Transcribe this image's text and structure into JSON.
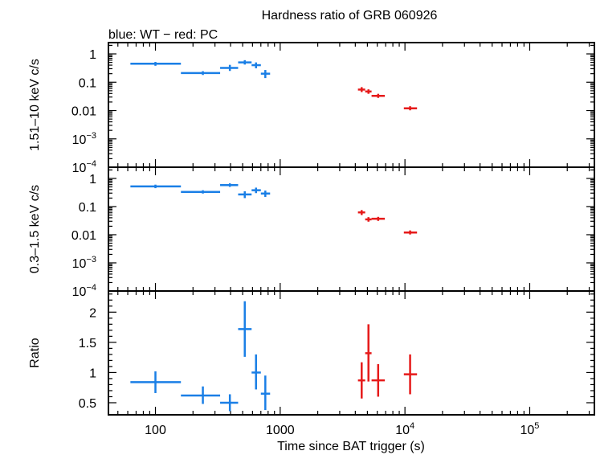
{
  "chart_data": {
    "type": "scatter",
    "title": "Hardness ratio of GRB 060926",
    "subtitle": "blue: WT − red: PC",
    "xlabel": "Time since BAT trigger (s)",
    "x_scale": "log",
    "xlim": [
      42,
      330000
    ],
    "x_ticks": [
      {
        "value": 100,
        "label": "100"
      },
      {
        "value": 1000,
        "label": "1000"
      },
      {
        "value": 10000,
        "label": "10",
        "exp": "4"
      },
      {
        "value": 100000,
        "label": "10",
        "exp": "5"
      }
    ],
    "colors": {
      "WT": "#1a7fe6",
      "PC": "#e61a1a"
    },
    "panels": [
      {
        "ylabel": "1.51–10 keV c/s",
        "y_scale": "log",
        "ylim": [
          0.0001,
          2.5
        ],
        "y_ticks": [
          {
            "value": 1,
            "label": "1"
          },
          {
            "value": 0.1,
            "label": "0.1"
          },
          {
            "value": 0.01,
            "label": "0.01"
          },
          {
            "value": 0.001,
            "label": "10",
            "exp": "−3"
          },
          {
            "value": 0.0001,
            "label": "10",
            "exp": "−4"
          }
        ],
        "series": [
          {
            "mode": "WT",
            "points": [
              {
                "x": 100,
                "xlo": 63,
                "xhi": 160,
                "y": 0.45,
                "ylo": 0.38,
                "yhi": 0.52
              },
              {
                "x": 240,
                "xlo": 160,
                "xhi": 330,
                "y": 0.21,
                "ylo": 0.18,
                "yhi": 0.245
              },
              {
                "x": 395,
                "xlo": 330,
                "xhi": 460,
                "y": 0.32,
                "ylo": 0.25,
                "yhi": 0.41
              },
              {
                "x": 520,
                "xlo": 460,
                "xhi": 590,
                "y": 0.5,
                "ylo": 0.42,
                "yhi": 0.6
              },
              {
                "x": 640,
                "xlo": 590,
                "xhi": 700,
                "y": 0.4,
                "ylo": 0.31,
                "yhi": 0.5
              },
              {
                "x": 760,
                "xlo": 700,
                "xhi": 830,
                "y": 0.2,
                "ylo": 0.14,
                "yhi": 0.27
              }
            ]
          },
          {
            "mode": "PC",
            "points": [
              {
                "x": 4500,
                "xlo": 4200,
                "xhi": 4800,
                "y": 0.055,
                "ylo": 0.045,
                "yhi": 0.067
              },
              {
                "x": 5100,
                "xlo": 4800,
                "xhi": 5400,
                "y": 0.047,
                "ylo": 0.039,
                "yhi": 0.056
              },
              {
                "x": 6100,
                "xlo": 5400,
                "xhi": 6900,
                "y": 0.033,
                "ylo": 0.028,
                "yhi": 0.039
              },
              {
                "x": 11000,
                "xlo": 9800,
                "xhi": 12500,
                "y": 0.012,
                "ylo": 0.0102,
                "yhi": 0.0142
              }
            ]
          }
        ]
      },
      {
        "ylabel": "0.3–1.5 keV c/s",
        "y_scale": "log",
        "ylim": [
          0.0001,
          2.5
        ],
        "y_ticks": [
          {
            "value": 1,
            "label": "1"
          },
          {
            "value": 0.1,
            "label": "0.1"
          },
          {
            "value": 0.01,
            "label": "0.01"
          },
          {
            "value": 0.001,
            "label": "10",
            "exp": "−3"
          },
          {
            "value": 0.0001,
            "label": "10",
            "exp": "−4"
          }
        ],
        "series": [
          {
            "mode": "WT",
            "points": [
              {
                "x": 100,
                "xlo": 63,
                "xhi": 160,
                "y": 0.52,
                "ylo": 0.45,
                "yhi": 0.6
              },
              {
                "x": 240,
                "xlo": 160,
                "xhi": 330,
                "y": 0.33,
                "ylo": 0.29,
                "yhi": 0.38
              },
              {
                "x": 395,
                "xlo": 330,
                "xhi": 460,
                "y": 0.58,
                "ylo": 0.5,
                "yhi": 0.67
              },
              {
                "x": 520,
                "xlo": 460,
                "xhi": 590,
                "y": 0.27,
                "ylo": 0.2,
                "yhi": 0.35
              },
              {
                "x": 640,
                "xlo": 590,
                "xhi": 700,
                "y": 0.38,
                "ylo": 0.3,
                "yhi": 0.47
              },
              {
                "x": 760,
                "xlo": 700,
                "xhi": 830,
                "y": 0.29,
                "ylo": 0.22,
                "yhi": 0.37
              }
            ]
          },
          {
            "mode": "PC",
            "points": [
              {
                "x": 4500,
                "xlo": 4200,
                "xhi": 4800,
                "y": 0.062,
                "ylo": 0.05,
                "yhi": 0.075
              },
              {
                "x": 5100,
                "xlo": 4800,
                "xhi": 5400,
                "y": 0.035,
                "ylo": 0.029,
                "yhi": 0.042
              },
              {
                "x": 6100,
                "xlo": 5400,
                "xhi": 6900,
                "y": 0.037,
                "ylo": 0.031,
                "yhi": 0.043
              },
              {
                "x": 11000,
                "xlo": 9800,
                "xhi": 12500,
                "y": 0.012,
                "ylo": 0.0102,
                "yhi": 0.0142
              }
            ]
          }
        ]
      },
      {
        "ylabel": "Ratio",
        "y_scale": "linear",
        "ylim": [
          0.3,
          2.35
        ],
        "y_ticks": [
          {
            "value": 2,
            "label": "2"
          },
          {
            "value": 1.5,
            "label": "1.5"
          },
          {
            "value": 1,
            "label": "1"
          },
          {
            "value": 0.5,
            "label": "0.5"
          }
        ],
        "series": [
          {
            "mode": "WT",
            "points": [
              {
                "x": 100,
                "xlo": 63,
                "xhi": 160,
                "y": 0.84,
                "ylo": 0.66,
                "yhi": 1.02
              },
              {
                "x": 240,
                "xlo": 160,
                "xhi": 330,
                "y": 0.62,
                "ylo": 0.48,
                "yhi": 0.77
              },
              {
                "x": 395,
                "xlo": 330,
                "xhi": 460,
                "y": 0.5,
                "ylo": 0.36,
                "yhi": 0.64
              },
              {
                "x": 520,
                "xlo": 460,
                "xhi": 590,
                "y": 1.72,
                "ylo": 1.26,
                "yhi": 2.18
              },
              {
                "x": 640,
                "xlo": 590,
                "xhi": 700,
                "y": 1.0,
                "ylo": 0.72,
                "yhi": 1.3
              },
              {
                "x": 760,
                "xlo": 700,
                "xhi": 830,
                "y": 0.65,
                "ylo": 0.38,
                "yhi": 0.95
              }
            ]
          },
          {
            "mode": "PC",
            "points": [
              {
                "x": 4500,
                "xlo": 4200,
                "xhi": 4800,
                "y": 0.87,
                "ylo": 0.57,
                "yhi": 1.17
              },
              {
                "x": 5100,
                "xlo": 4800,
                "xhi": 5400,
                "y": 1.32,
                "ylo": 0.85,
                "yhi": 1.8
              },
              {
                "x": 6100,
                "xlo": 5400,
                "xhi": 6900,
                "y": 0.87,
                "ylo": 0.6,
                "yhi": 1.14
              },
              {
                "x": 11000,
                "xlo": 9800,
                "xhi": 12500,
                "y": 0.97,
                "ylo": 0.64,
                "yhi": 1.3
              }
            ]
          }
        ]
      }
    ]
  }
}
